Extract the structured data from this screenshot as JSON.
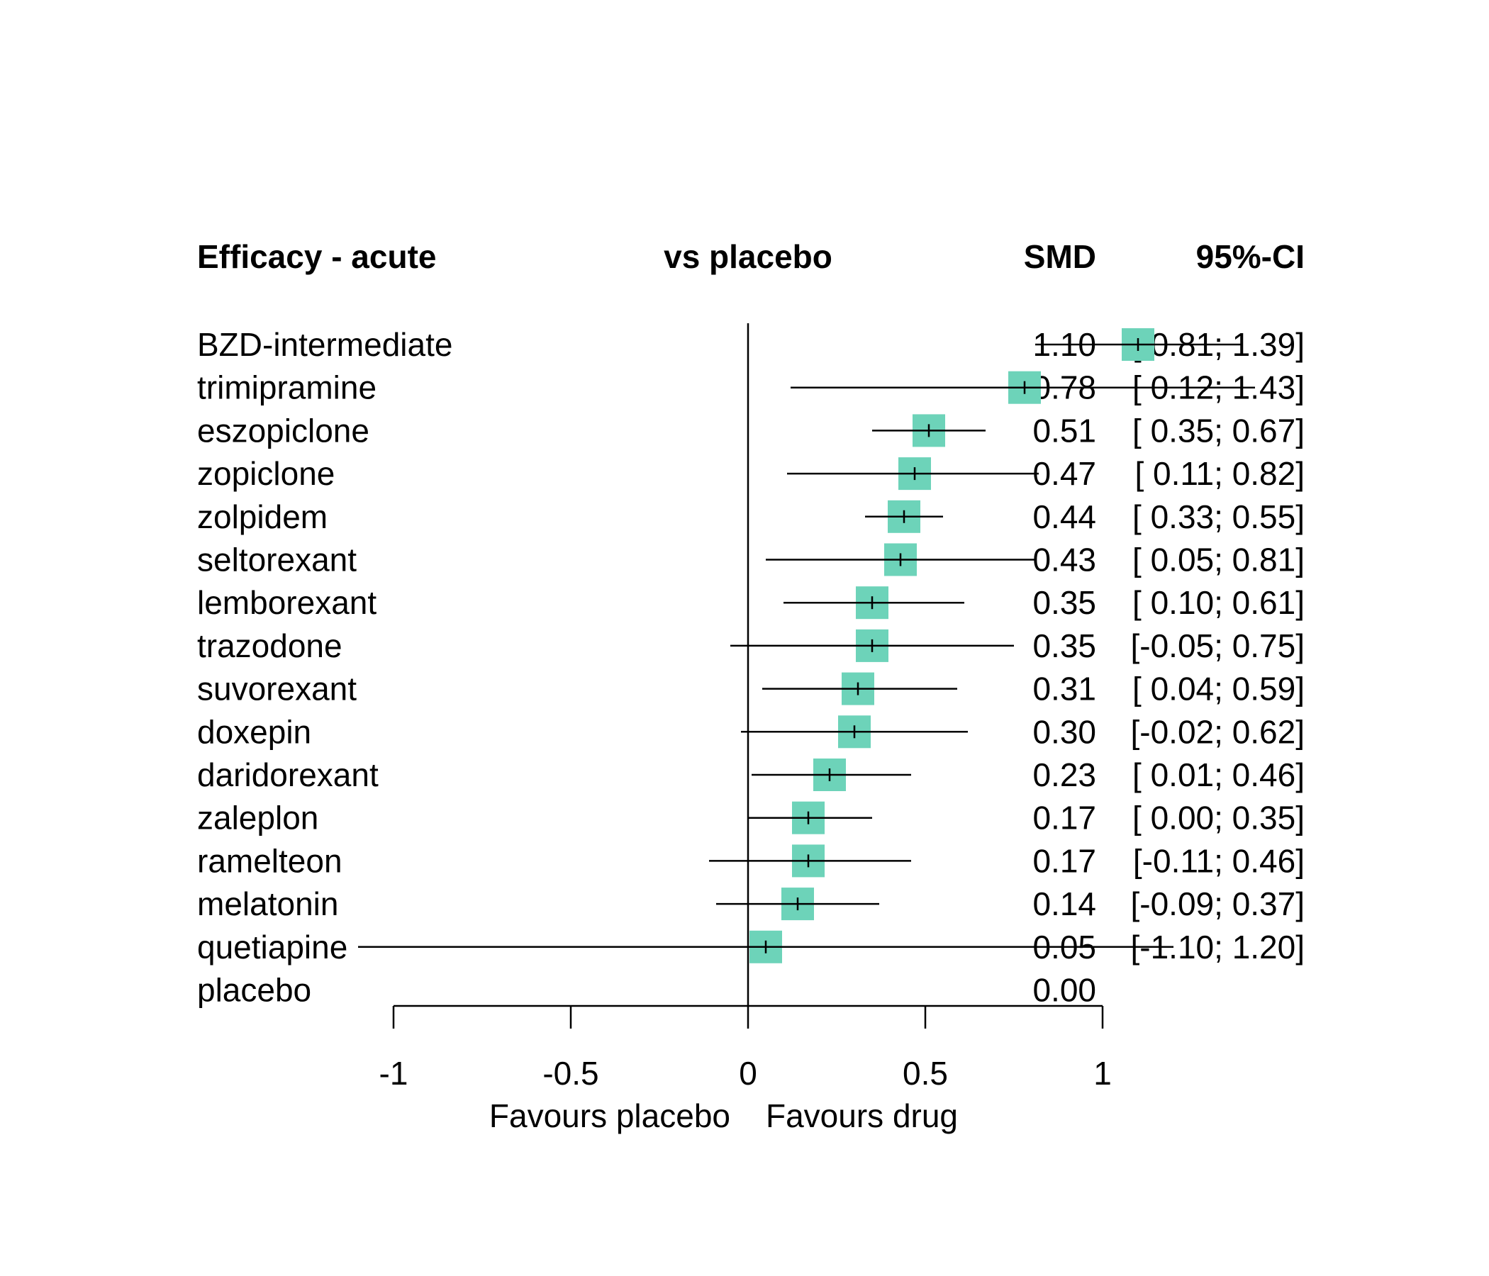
{
  "chart_data": {
    "type": "forest",
    "headers": {
      "label": "Efficacy - acute",
      "comparison": "vs placebo",
      "estimate": "SMD",
      "ci": "95%-CI"
    },
    "rows": [
      {
        "label": "BZD-intermediate",
        "smd": 1.1,
        "lower": 0.81,
        "upper": 1.39,
        "smd_text": "1.10",
        "ci_text": "[ 0.81; 1.39]"
      },
      {
        "label": "trimipramine",
        "smd": 0.78,
        "lower": 0.12,
        "upper": 1.43,
        "smd_text": "0.78",
        "ci_text": "[ 0.12; 1.43]"
      },
      {
        "label": "eszopiclone",
        "smd": 0.51,
        "lower": 0.35,
        "upper": 0.67,
        "smd_text": "0.51",
        "ci_text": "[ 0.35; 0.67]"
      },
      {
        "label": "zopiclone",
        "smd": 0.47,
        "lower": 0.11,
        "upper": 0.82,
        "smd_text": "0.47",
        "ci_text": "[ 0.11; 0.82]"
      },
      {
        "label": "zolpidem",
        "smd": 0.44,
        "lower": 0.33,
        "upper": 0.55,
        "smd_text": "0.44",
        "ci_text": "[ 0.33; 0.55]"
      },
      {
        "label": "seltorexant",
        "smd": 0.43,
        "lower": 0.05,
        "upper": 0.81,
        "smd_text": "0.43",
        "ci_text": "[ 0.05; 0.81]"
      },
      {
        "label": "lemborexant",
        "smd": 0.35,
        "lower": 0.1,
        "upper": 0.61,
        "smd_text": "0.35",
        "ci_text": "[ 0.10; 0.61]"
      },
      {
        "label": "trazodone",
        "smd": 0.35,
        "lower": -0.05,
        "upper": 0.75,
        "smd_text": "0.35",
        "ci_text": "[-0.05; 0.75]"
      },
      {
        "label": "suvorexant",
        "smd": 0.31,
        "lower": 0.04,
        "upper": 0.59,
        "smd_text": "0.31",
        "ci_text": "[ 0.04; 0.59]"
      },
      {
        "label": "doxepin",
        "smd": 0.3,
        "lower": -0.02,
        "upper": 0.62,
        "smd_text": "0.30",
        "ci_text": "[-0.02; 0.62]"
      },
      {
        "label": "daridorexant",
        "smd": 0.23,
        "lower": 0.01,
        "upper": 0.46,
        "smd_text": "0.23",
        "ci_text": "[ 0.01; 0.46]"
      },
      {
        "label": "zaleplon",
        "smd": 0.17,
        "lower": 0.0,
        "upper": 0.35,
        "smd_text": "0.17",
        "ci_text": "[ 0.00; 0.35]"
      },
      {
        "label": "ramelteon",
        "smd": 0.17,
        "lower": -0.11,
        "upper": 0.46,
        "smd_text": "0.17",
        "ci_text": "[-0.11; 0.46]"
      },
      {
        "label": "melatonin",
        "smd": 0.14,
        "lower": -0.09,
        "upper": 0.37,
        "smd_text": "0.14",
        "ci_text": "[-0.09; 0.37]"
      },
      {
        "label": "quetiapine",
        "smd": 0.05,
        "lower": -1.1,
        "upper": 1.2,
        "smd_text": "0.05",
        "ci_text": "[-1.10; 1.20]"
      },
      {
        "label": "placebo",
        "smd": 0.0,
        "lower": null,
        "upper": null,
        "smd_text": "0.00",
        "ci_text": ""
      }
    ],
    "x_axis": {
      "ticks": [
        -1,
        -0.5,
        0,
        0.5,
        1
      ],
      "tick_labels": [
        "-1",
        "-0.5",
        "0",
        "0.5",
        "1"
      ],
      "range": [
        -1,
        1
      ],
      "reference_line": 0,
      "left_label": "Favours placebo",
      "right_label": "Favours drug"
    },
    "marker_color": "#6DD3B9",
    "line_color": "#000000"
  }
}
